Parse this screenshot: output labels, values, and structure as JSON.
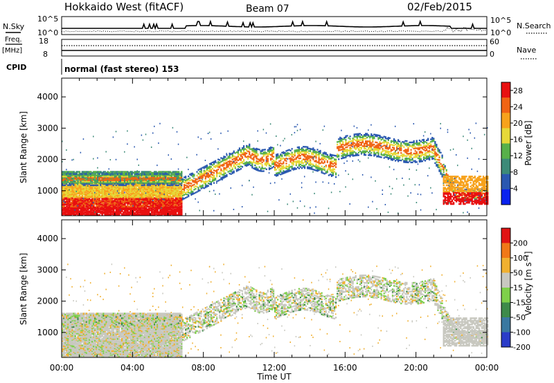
{
  "header": {
    "station": "Hokkaido West (fitACF)",
    "beam": "Beam 07",
    "date": "02/Feb/2015"
  },
  "top_panels": {
    "nsky_label": "N.Sky",
    "nsky_left_ticks": [
      "10^5",
      "10^0"
    ],
    "nsky_right_ticks": [
      "10^5",
      "10^0"
    ],
    "nsearch_label": "N.Search",
    "freq_label": "Freq.",
    "freq_unit": "[MHz]",
    "freq_ticks": [
      "18",
      "8"
    ],
    "nave_label": "Nave",
    "nave_ticks": [
      "60",
      "0"
    ],
    "cpid_label": "CPID",
    "cpid_text": "normal (fast stereo) 153"
  },
  "chart_data": [
    {
      "type": "heatmap",
      "name": "power-panel",
      "ylabel": "Slant Range [km]",
      "xlabel": "",
      "yticks": [
        "1000",
        "2000",
        "3000",
        "4000"
      ],
      "ylim": [
        200,
        4600
      ],
      "xticks": [
        "00:00",
        "04:00",
        "08:00",
        "12:00",
        "16:00",
        "20:00",
        "00:00"
      ],
      "xlim_hours": [
        0,
        24
      ],
      "colorbar": {
        "label": "Power [dB]",
        "ticks": [
          "4",
          "8",
          "12",
          "16",
          "20",
          "24",
          "28"
        ],
        "range": [
          0,
          30
        ],
        "colors": [
          "#0a22ee",
          "#2a58b0",
          "#3c8a78",
          "#58b04a",
          "#e6d838",
          "#f7a21c",
          "#f06414",
          "#e81010"
        ]
      },
      "echo_bands": [
        {
          "t0": 0,
          "t1": 6.8,
          "r0": 250,
          "r1": 500,
          "level": "red"
        },
        {
          "t0": 0,
          "t1": 6.8,
          "r0": 500,
          "r1": 800,
          "level": "orange-red"
        },
        {
          "t0": 0,
          "t1": 6.8,
          "r0": 800,
          "r1": 1250,
          "level": "orange-yellow"
        },
        {
          "t0": 0,
          "t1": 6.8,
          "r0": 1250,
          "r1": 1650,
          "level": "green-blue"
        },
        {
          "t0": 16,
          "t1": 20.7,
          "r0": 2200,
          "r1": 2600,
          "level": "orange"
        },
        {
          "t0": 21.5,
          "t1": 24,
          "r0": 650,
          "r1": 1500,
          "level": "orange-red"
        }
      ]
    },
    {
      "type": "heatmap",
      "name": "velocity-panel",
      "ylabel": "Slant Range [km]",
      "xlabel": "Time UT",
      "yticks": [
        "1000",
        "2000",
        "3000",
        "4000"
      ],
      "ylim": [
        200,
        4600
      ],
      "xticks": [
        "00:00",
        "04:00",
        "08:00",
        "12:00",
        "16:00",
        "20:00",
        "00:00"
      ],
      "xlim_hours": [
        0,
        24
      ],
      "colorbar": {
        "label": "Velocity [m s⁻¹]",
        "ticks": [
          "200",
          "100",
          "50",
          "15",
          "-15",
          "-50",
          "-100",
          "-200"
        ],
        "range": [
          -250,
          250
        ],
        "colors": [
          "#2a3cc8",
          "#3a78a0",
          "#3d8a4a",
          "#7ed04a",
          "#c8c8c0",
          "#f0b030",
          "#f07818",
          "#e01414"
        ]
      },
      "echo_bands": [
        {
          "t0": 0,
          "t1": 6.8,
          "r0": 300,
          "r1": 1700,
          "level": "grey"
        },
        {
          "t0": 6.8,
          "t1": 10.5,
          "r0": 900,
          "r1": 2100,
          "level": "grey"
        },
        {
          "t0": 15.5,
          "t1": 21.2,
          "r0": 2150,
          "r1": 2700,
          "level": "grey"
        },
        {
          "t0": 21.8,
          "t1": 24,
          "r0": 700,
          "r1": 1500,
          "level": "grey"
        }
      ]
    }
  ]
}
